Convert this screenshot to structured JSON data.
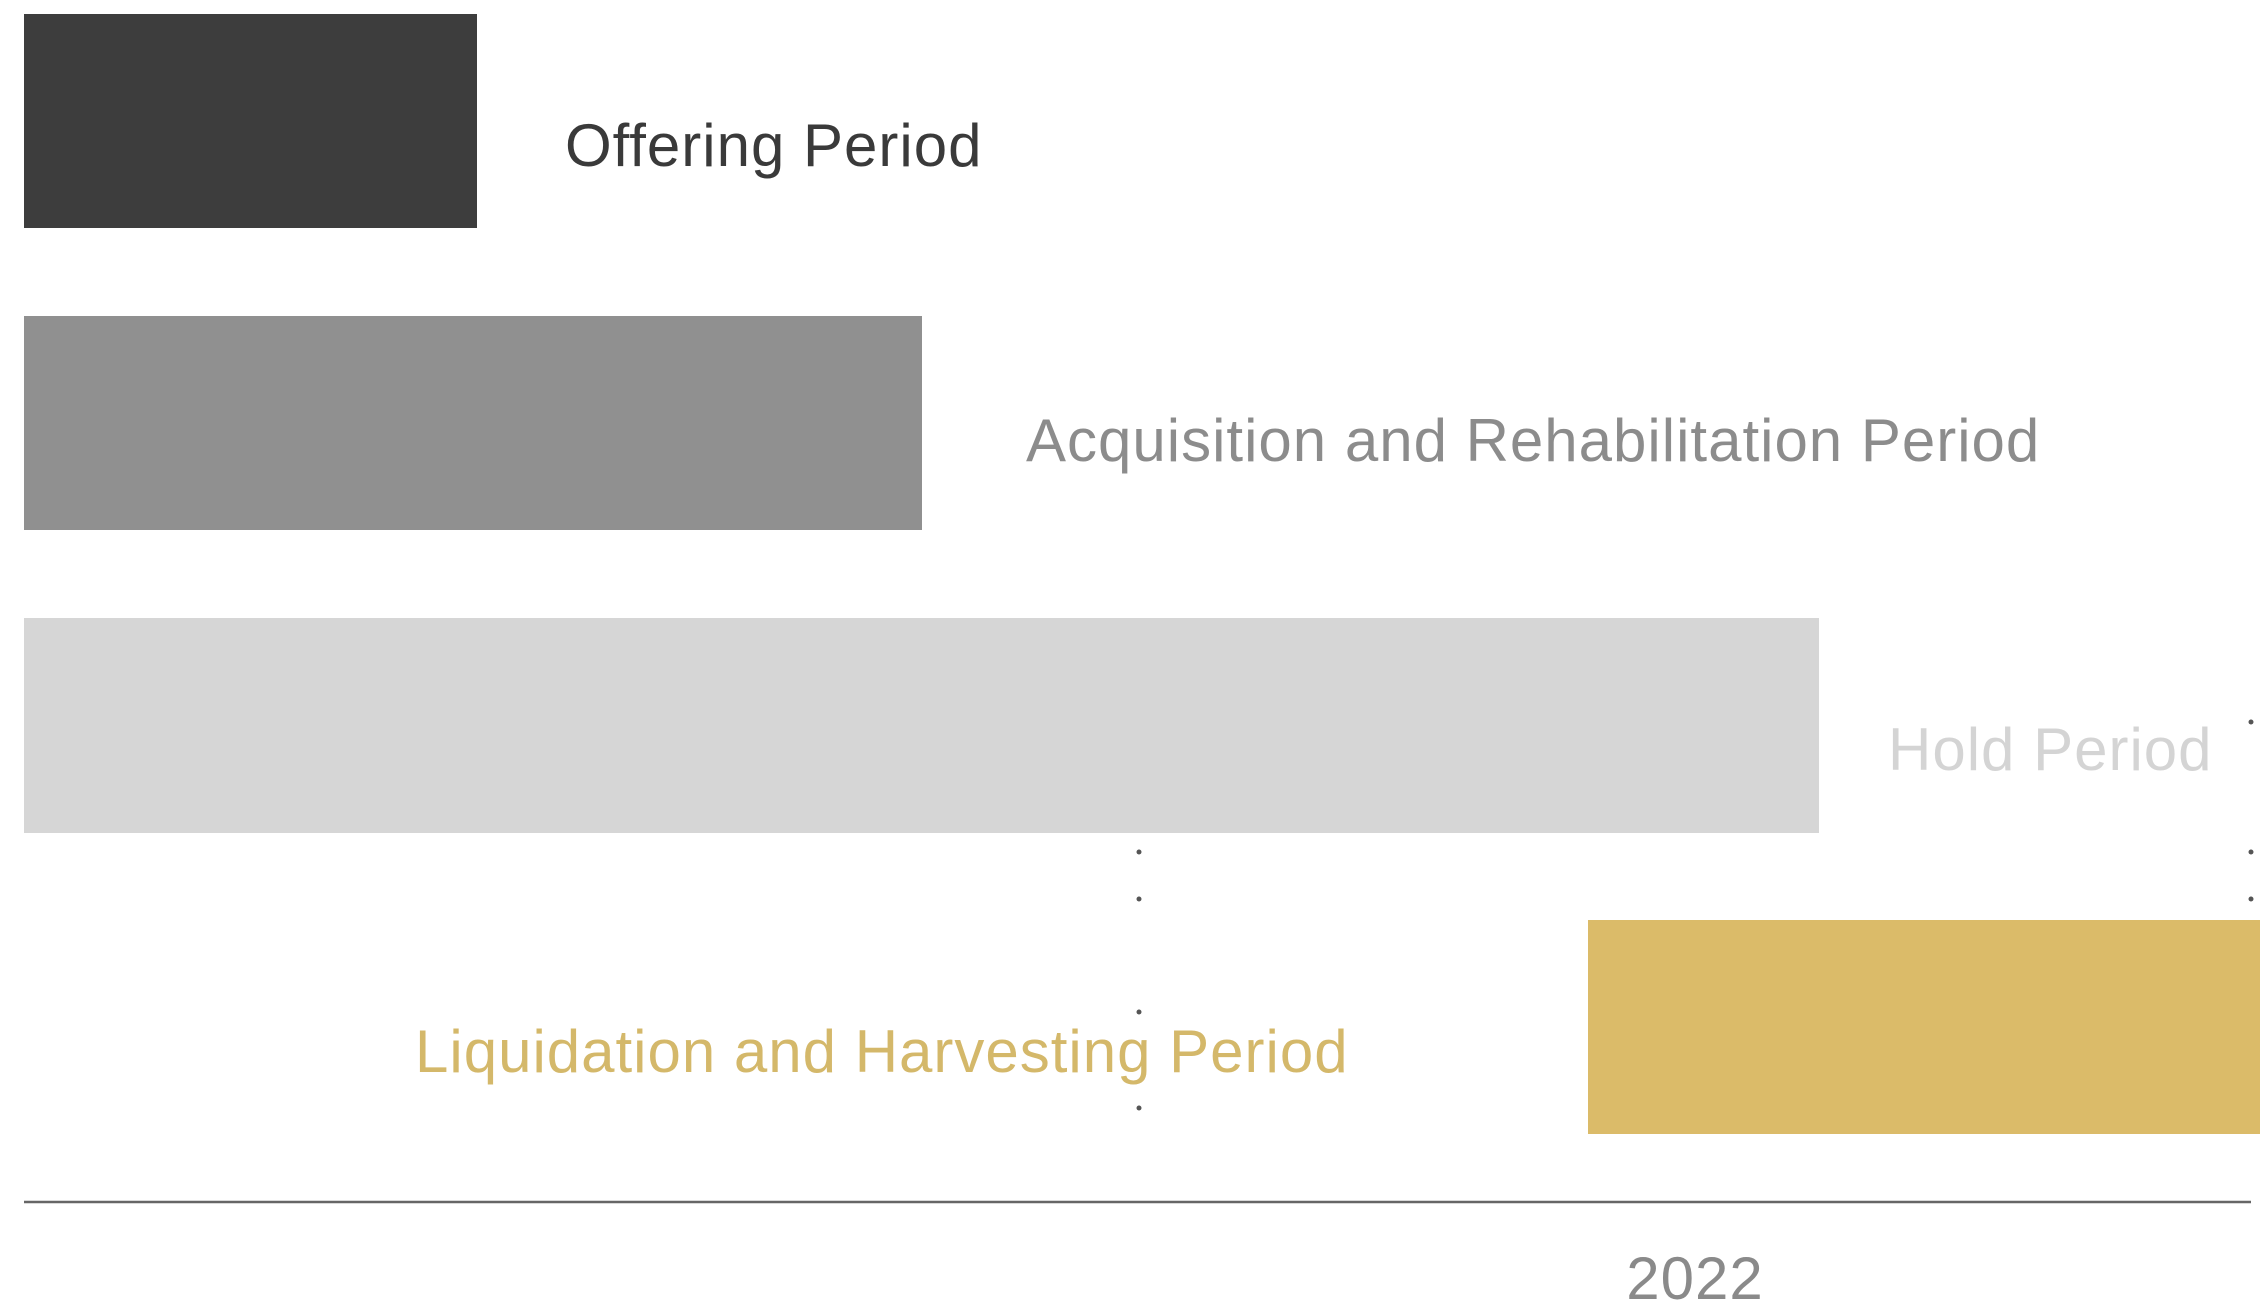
{
  "phases": [
    {
      "label": "Offering Period"
    },
    {
      "label": "Acquisition and Rehabilitation Period"
    },
    {
      "label": "Hold Period"
    },
    {
      "label": "Liquidation and Harvesting Period"
    }
  ],
  "axis": {
    "label": "2022"
  }
}
